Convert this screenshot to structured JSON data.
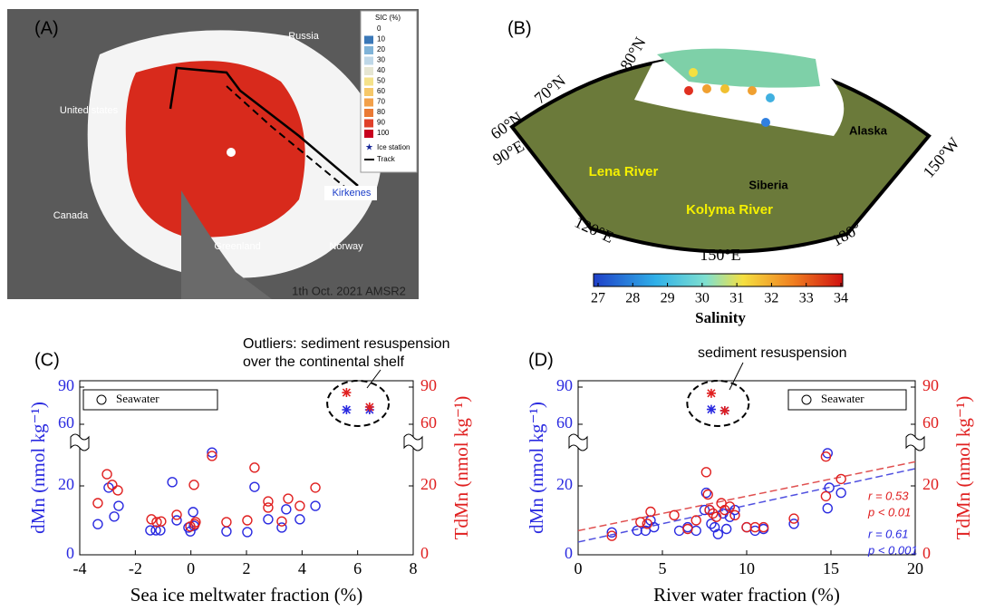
{
  "maps": [
    {
      "panel": "(A)",
      "labels": [
        "Russia",
        "United states",
        "Canada",
        "Greenland",
        "Norway",
        "Kirkenes",
        "1th Oct. 2021 AMSR2"
      ],
      "legend_title": "SIC (%)",
      "legend_ticks": [
        0,
        10,
        20,
        30,
        40,
        50,
        60,
        70,
        80,
        90,
        100
      ],
      "legend_colors": [
        "#ffffff",
        "#3a78b8",
        "#7fb3d8",
        "#bfd8e8",
        "#e6e6d2",
        "#f5e28a",
        "#f6c86a",
        "#f2a04a",
        "#ea7a35",
        "#e0402a",
        "#c8001e"
      ],
      "legend_items": [
        "Ice station",
        "Track"
      ]
    },
    {
      "panel": "(B)",
      "labels": [
        "80°N",
        "70°N",
        "60°N",
        "90°E",
        "120°E",
        "150°E",
        "180°",
        "150°W",
        "Lena River",
        "Kolyma River",
        "Siberia",
        "Alaska"
      ],
      "colorbar_ticks": [
        27,
        28,
        29,
        30,
        31,
        32,
        33,
        34
      ],
      "colorbar_label": "Salinity"
    }
  ],
  "chart_data": [
    {
      "type": "scatter",
      "panel": "(C)",
      "x_label": "Sea ice meltwater fraction (%)",
      "y_label": "dMn (nmol kg⁻¹)",
      "y2_label": "TdMn (nmol kg⁻¹)",
      "xlim": [
        -4,
        8
      ],
      "xticks": [
        -4,
        -2,
        0,
        2,
        4,
        6,
        8
      ],
      "ylim": [
        0,
        90
      ],
      "yticks": [
        0,
        20,
        60,
        90
      ],
      "y2lim": [
        0,
        90
      ],
      "y2ticks": [
        0,
        20,
        60,
        90
      ],
      "ybreak": [
        30,
        60
      ],
      "annotation": "Outliers: sediment resuspension over the continental shelf",
      "series": [
        {
          "name": "Seawater",
          "marker": "circle",
          "color": "#2a2ae0",
          "x": [
            -3.35,
            -2.96,
            -2.76,
            -2.6,
            -1.46,
            -1.26,
            -1.1,
            -0.67,
            -0.51,
            -0.09,
            -0.02,
            0.08,
            0.11,
            0.76,
            1.28,
            2.03,
            2.29,
            2.78,
            3.27,
            3.43,
            3.92,
            4.48
          ],
          "values": [
            8.9,
            19.5,
            11.1,
            14.2,
            7.1,
            7.1,
            7.1,
            21.1,
            10.0,
            7.9,
            6.8,
            12.4,
            8.4,
            29.7,
            6.8,
            6.6,
            19.7,
            10.3,
            7.9,
            13.2,
            10.3,
            14.2
          ]
        },
        {
          "marker": "circle",
          "color": "#e02020",
          "axis": "y2",
          "x": [
            -3.35,
            -3.02,
            -2.83,
            -2.63,
            -1.42,
            -1.23,
            -1.07,
            -0.51,
            -0.02,
            0.11,
            0.14,
            0.17,
            0.76,
            1.28,
            2.03,
            2.29,
            2.78,
            2.78,
            3.27,
            3.5,
            3.92,
            4.48
          ],
          "values": [
            15.0,
            23.4,
            20.3,
            18.7,
            10.3,
            9.5,
            9.7,
            11.6,
            8.2,
            20.3,
            8.9,
            9.5,
            28.7,
            9.5,
            10.0,
            25.3,
            15.5,
            13.7,
            9.7,
            16.3,
            14.2,
            19.5
          ]
        },
        {
          "marker": "asterisk",
          "color": "#2a2ae0",
          "x": [
            5.6,
            6.43
          ],
          "values": [
            71.7,
            71.7
          ]
        },
        {
          "marker": "asterisk",
          "color": "#e02020",
          "axis": "y2",
          "x": [
            5.6,
            6.43
          ],
          "values": [
            85.6,
            73.9
          ]
        }
      ]
    },
    {
      "type": "scatter",
      "panel": "(D)",
      "x_label": "River water fraction (%)",
      "y_label": "dMn (nmol kg⁻¹)",
      "y2_label": "TdMn (nmol kg⁻¹)",
      "xlim": [
        0,
        20
      ],
      "xticks": [
        0,
        5,
        10,
        15,
        20
      ],
      "ylim": [
        0,
        90
      ],
      "yticks": [
        0,
        20,
        60,
        90
      ],
      "y2lim": [
        0,
        90
      ],
      "y2ticks": [
        0,
        20,
        60,
        90
      ],
      "ybreak": [
        30,
        60
      ],
      "annotation": "sediment resuspension",
      "series": [
        {
          "name": "Seawater",
          "marker": "circle",
          "color": "#2a2ae0",
          "x": [
            2.0,
            3.5,
            4.0,
            4.3,
            4.5,
            6.0,
            6.5,
            7.0,
            7.5,
            7.6,
            7.8,
            7.9,
            8.1,
            8.3,
            8.6,
            8.8,
            9.0,
            9.3,
            10.0,
            10.5,
            11.0,
            12.8,
            14.8,
            14.8,
            14.9,
            15.6
          ],
          "values": [
            6.5,
            7,
            7,
            10,
            8,
            7,
            8,
            7,
            13,
            18,
            13,
            9,
            8,
            6,
            12,
            7.5,
            11,
            13,
            8,
            7,
            7.5,
            9,
            13.5,
            29.5,
            19.5,
            18
          ]
        },
        {
          "marker": "circle",
          "color": "#e02020",
          "axis": "y2",
          "x": [
            2.0,
            3.7,
            4.1,
            4.3,
            5.7,
            6.5,
            7.0,
            7.6,
            7.7,
            7.8,
            8.0,
            8.2,
            8.5,
            8.7,
            9.0,
            9.3,
            10.0,
            10.5,
            11.0,
            12.8,
            14.7,
            14.7,
            15.6
          ],
          "values": [
            5.5,
            9.5,
            9,
            12.5,
            11.5,
            7.5,
            10,
            24,
            17.5,
            13,
            12,
            11,
            15,
            13,
            14,
            11.5,
            8,
            8,
            8,
            10.5,
            28.5,
            17,
            22
          ]
        },
        {
          "marker": "asterisk",
          "color": "#2a2ae0",
          "x": [
            7.9,
            8.7
          ],
          "values": [
            72,
            71
          ]
        },
        {
          "marker": "asterisk",
          "color": "#e02020",
          "axis": "y2",
          "x": [
            7.9,
            8.7
          ],
          "values": [
            85,
            71
          ]
        }
      ],
      "fits": [
        {
          "color": "#e05050",
          "axis": "y2",
          "x": [
            0,
            20
          ],
          "values": [
            7,
            27
          ]
        },
        {
          "color": "#5050e0",
          "x": [
            0,
            20
          ],
          "values": [
            3.7,
            25
          ]
        }
      ],
      "stats": [
        {
          "text": "r = 0.53",
          "color": "#e02020"
        },
        {
          "text": "p < 0.01",
          "color": "#e02020"
        },
        {
          "text": "r = 0.61",
          "color": "#2a2ae0"
        },
        {
          "text": "p < 0.001",
          "color": "#2a2ae0"
        }
      ]
    }
  ]
}
